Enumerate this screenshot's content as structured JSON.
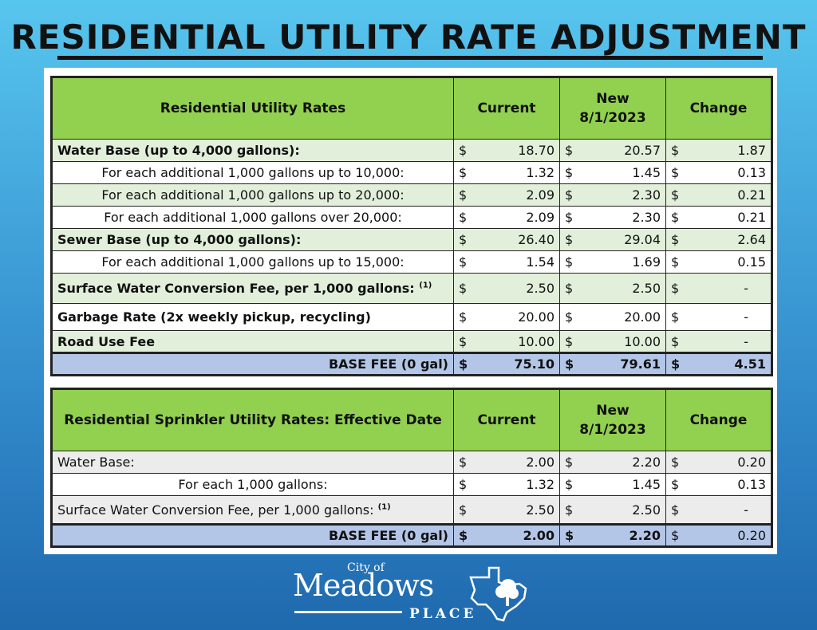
{
  "title": "RESIDENTIAL UTILITY RATE ADJUSTMENT",
  "currency": "$",
  "table1": {
    "headers": {
      "desc": "Residential Utility Rates",
      "current": "Current",
      "new_line1": "New",
      "new_line2": "8/1/2023",
      "change": "Change"
    },
    "rows": [
      {
        "desc": "Water Base (up to 4,000 gallons):",
        "current": "18.70",
        "new": "20.57",
        "change": "1.87"
      },
      {
        "desc": "For each additional 1,000 gallons up to 10,000:",
        "current": "1.32",
        "new": "1.45",
        "change": "0.13"
      },
      {
        "desc": "For each additional 1,000 gallons up to 20,000:",
        "current": "2.09",
        "new": "2.30",
        "change": "0.21"
      },
      {
        "desc": "For each additional 1,000 gallons over 20,000:",
        "current": "2.09",
        "new": "2.30",
        "change": "0.21"
      },
      {
        "desc": "Sewer Base (up to 4,000 gallons):",
        "current": "26.40",
        "new": "29.04",
        "change": "2.64"
      },
      {
        "desc": "For each additional 1,000 gallons up to 15,000:",
        "current": "1.54",
        "new": "1.69",
        "change": "0.15"
      },
      {
        "desc": "Surface Water Conversion Fee, per 1,000 gallons:",
        "note": "(1)",
        "current": "2.50",
        "new": "2.50",
        "change": "-"
      },
      {
        "desc": "Garbage Rate (2x weekly pickup, recycling)",
        "current": "20.00",
        "new": "20.00",
        "change": "-"
      },
      {
        "desc": "Road Use Fee",
        "current": "10.00",
        "new": "10.00",
        "change": "-"
      }
    ],
    "total": {
      "desc": "BASE FEE (0 gal)",
      "current": "75.10",
      "new": "79.61",
      "change": "4.51"
    }
  },
  "table2": {
    "headers": {
      "desc": "Residential Sprinkler Utility Rates: Effective Date",
      "current": "Current",
      "new_line1": "New",
      "new_line2": "8/1/2023",
      "change": "Change"
    },
    "rows": [
      {
        "desc": "Water Base:",
        "current": "2.00",
        "new": "2.20",
        "change": "0.20"
      },
      {
        "desc": "For each 1,000 gallons:",
        "current": "1.32",
        "new": "1.45",
        "change": "0.13"
      },
      {
        "desc": "Surface Water Conversion Fee, per 1,000 gallons:",
        "note": "(1)",
        "current": "2.50",
        "new": "2.50",
        "change": "-"
      }
    ],
    "total": {
      "desc": "BASE FEE (0 gal)",
      "current": "2.00",
      "new": "2.20",
      "change": "0.20"
    }
  },
  "logo": {
    "city_of": "City of",
    "name": "Meadows",
    "place": "PLACE",
    "icon": "texas-map-tree-logo"
  }
}
